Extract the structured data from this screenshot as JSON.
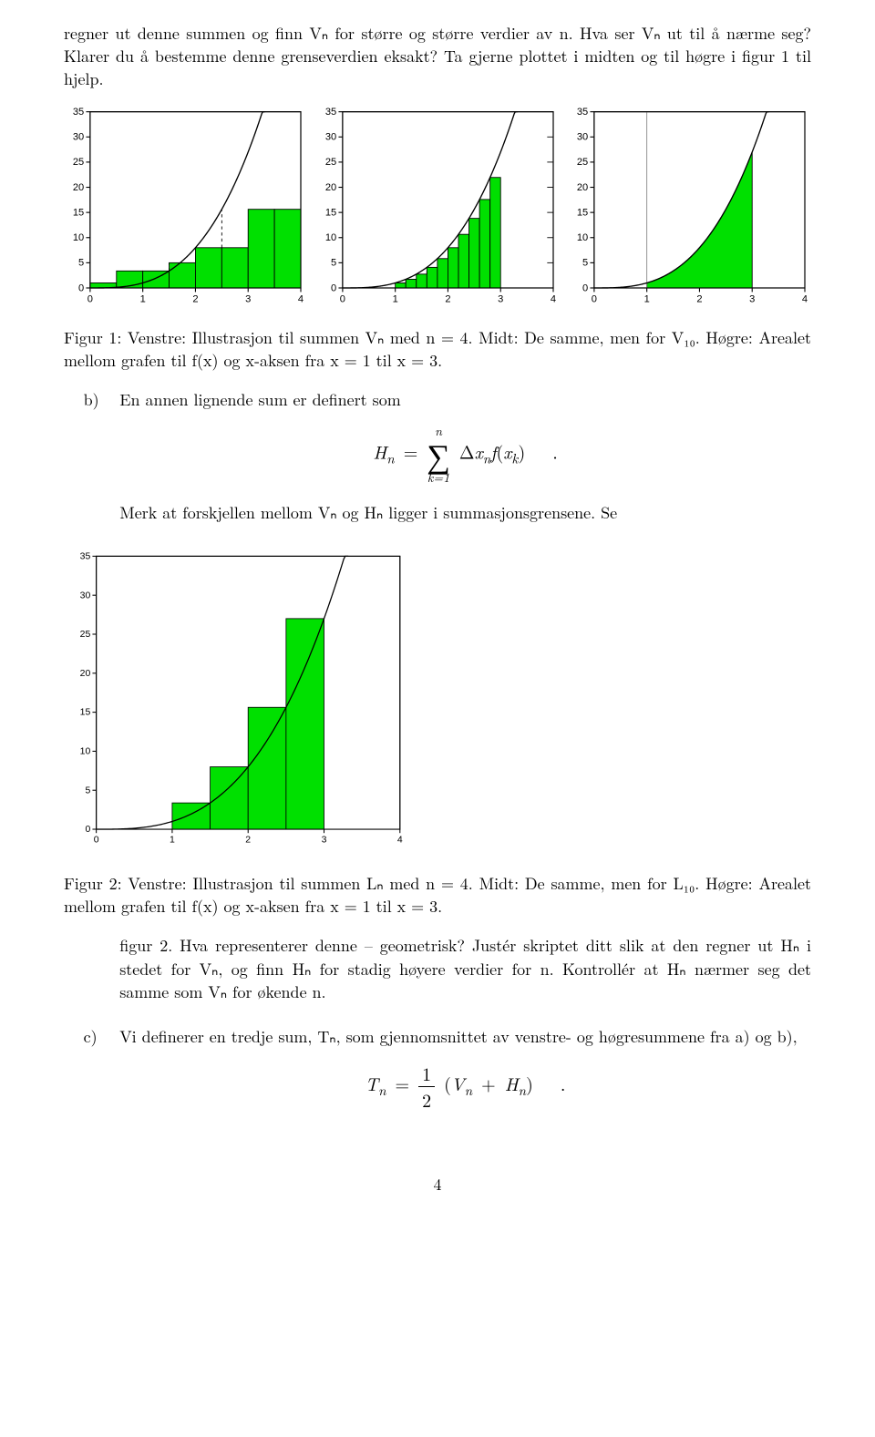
{
  "para1": "regner ut denne summen og finn Vₙ for større og større verdier av n. Hva ser Vₙ ut til å nærme seg? Klarer du å bestemme denne grenseverdien eksakt? Ta gjerne plottet i midten og til høgre i figur 1 til hjelp.",
  "fig1_caption": "Figur 1: Venstre: Illustrasjon til summen Vₙ med n = 4. Midt: De samme, men for V₁₀. Høgre: Arealet mellom grafen til f(x) og x-aksen fra x = 1 til x = 3.",
  "item_b_label": "b)",
  "item_b_para1": "En annen lignende sum er definert som",
  "formula_b": "Hₙ = Σ Δxₙ f(xₖ)   .",
  "formula_b_lim_top": "n",
  "formula_b_lim_bot": "k=1",
  "item_b_para2": "Merk at forskjellen mellom Vₙ og Hₙ ligger i summasjonsgrensene. Se",
  "fig2_caption": "Figur 2: Venstre: Illustrasjon til summen Lₙ med n = 4. Midt: De samme, men for L₁₀. Høgre: Arealet mellom grafen til f(x) og x-aksen fra x = 1 til x = 3.",
  "item_b_para3": "figur 2. Hva representerer denne – geometrisk? Justér skriptet ditt slik at den regner ut Hₙ i stedet for Vₙ, og finn Hₙ for stadig høyere verdier for n. Kontrollér at Hₙ nærmer seg det samme som Vₙ for økende n.",
  "item_c_label": "c)",
  "item_c_para1": "Vi definerer en tredje sum, Tₙ, som gjennomsnittet av venstre- og høgresummene fra a) og b),",
  "formula_c_left": "Tₙ = ",
  "formula_c_frac_num": "1",
  "formula_c_frac_den": "2",
  "formula_c_right": " (Vₙ + Hₙ)   .",
  "pagenum": "4",
  "chart_common": {
    "xlim": [
      0,
      4
    ],
    "ylim": [
      0,
      35
    ],
    "xticks": [
      0,
      1,
      2,
      3,
      4
    ],
    "yticks": [
      0,
      5,
      10,
      15,
      20,
      25,
      30,
      35
    ],
    "tick_fontsize": 10,
    "bar_fill": "#00e000",
    "bar_stroke": "#000000",
    "curve_stroke": "#000000",
    "curve_width": 1.2,
    "dash_stroke": "#000000",
    "dash_pattern": "3,3",
    "box_stroke": "#000000",
    "background": "#ffffff"
  },
  "chart_left": {
    "type": "bar",
    "bars": [
      {
        "x": 0,
        "w": 0.5,
        "h": 1
      },
      {
        "x": 0.5,
        "w": 0.5,
        "h": 3.375
      },
      {
        "x": 1.0,
        "w": 0.5,
        "h": 3.375
      },
      {
        "x": 1.5,
        "w": 0.5,
        "h": 5
      },
      {
        "x": 2.0,
        "w": 0.5,
        "h": 8
      },
      {
        "x": 2.5,
        "w": 0.5,
        "h": 8
      },
      {
        "x": 3.0,
        "w": 0.5,
        "h": 15.625
      },
      {
        "x": 3.5,
        "w": 0.5,
        "h": 15.625
      }
    ],
    "dash_lines": [
      {
        "x0": 1.5,
        "y0": 3.375,
        "x1": 1.5,
        "y1": 5
      },
      {
        "x0": 2.5,
        "y0": 8,
        "x1": 2.5,
        "y1": 15.625
      }
    ]
  },
  "chart_mid": {
    "type": "bar",
    "bars": [
      {
        "x": 1.0,
        "w": 0.2,
        "h": 1.0
      },
      {
        "x": 1.2,
        "w": 0.2,
        "h": 1.728
      },
      {
        "x": 1.4,
        "w": 0.2,
        "h": 2.744
      },
      {
        "x": 1.6,
        "w": 0.2,
        "h": 4.096
      },
      {
        "x": 1.8,
        "w": 0.2,
        "h": 5.832
      },
      {
        "x": 2.0,
        "w": 0.2,
        "h": 8.0
      },
      {
        "x": 2.2,
        "w": 0.2,
        "h": 10.648
      },
      {
        "x": 2.4,
        "w": 0.2,
        "h": 13.824
      },
      {
        "x": 2.6,
        "w": 0.2,
        "h": 17.576
      },
      {
        "x": 2.8,
        "w": 0.2,
        "h": 21.952
      }
    ],
    "dash_lines": [
      {
        "x0": 1.2,
        "y0": 1.0,
        "x1": 1.2,
        "y1": 1.728
      },
      {
        "x0": 1.6,
        "y0": 2.744,
        "x1": 1.6,
        "y1": 4.096
      },
      {
        "x0": 2.0,
        "y0": 5.832,
        "x1": 2.0,
        "y1": 8.0
      }
    ],
    "right_dash_ticks": [
      5,
      10,
      15,
      20,
      25,
      30
    ]
  },
  "chart_right": {
    "type": "area",
    "area_x0": 1,
    "area_x1": 3,
    "vline_x": 1
  },
  "chart_big": {
    "type": "bar",
    "bars": [
      {
        "x": 1.0,
        "w": 0.5,
        "h": 3.375
      },
      {
        "x": 1.5,
        "w": 0.5,
        "h": 8.0
      },
      {
        "x": 2.0,
        "w": 0.5,
        "h": 15.625
      },
      {
        "x": 2.5,
        "w": 0.5,
        "h": 27.0
      }
    ]
  }
}
